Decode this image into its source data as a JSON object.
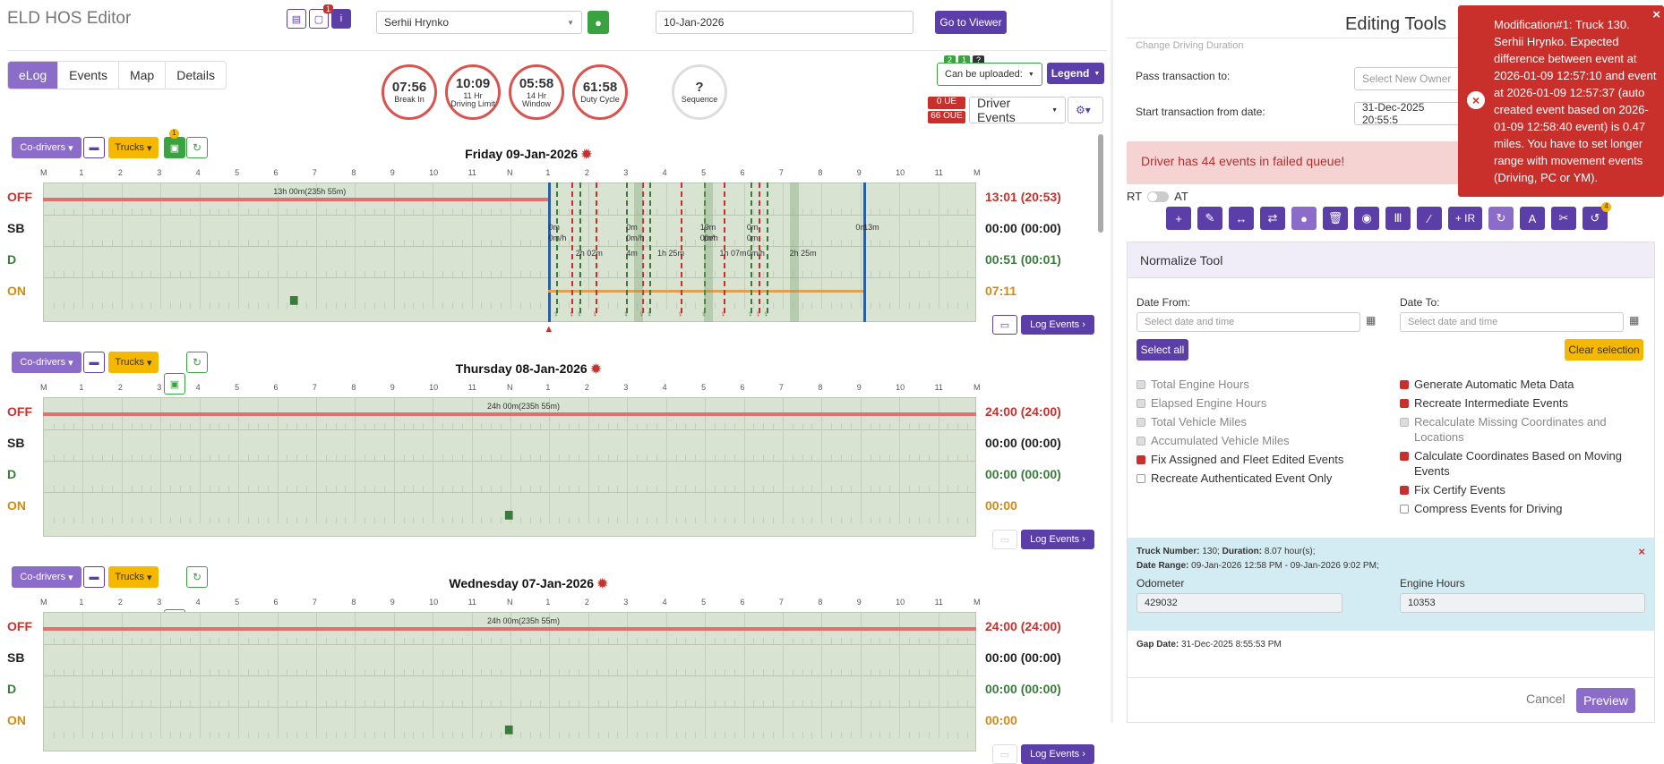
{
  "app": {
    "title": "ELD HOS Editor",
    "badge": "1",
    "driver": "Serhii Hrynko",
    "date": "10-Jan-2026",
    "go_viewer": "Go to Viewer"
  },
  "tabs": [
    "eLog",
    "Events",
    "Map",
    "Details"
  ],
  "counters": [
    {
      "value": "07:56",
      "label": "Break In"
    },
    {
      "value": "10:09",
      "label": "11 Hr Driving Limit"
    },
    {
      "value": "05:58",
      "label": "14 Hr Window"
    },
    {
      "value": "61:58",
      "label": "Duty Cycle"
    }
  ],
  "sequence": {
    "value": "?",
    "label": "Sequence"
  },
  "upload": {
    "label": "Can be uploaded:",
    "b1": "2",
    "b2": "1",
    "b3": "?",
    "legend": "Legend"
  },
  "ue": {
    "ue": "0 UE",
    "oue": "66 OUE"
  },
  "driver_events": "Driver Events",
  "day_controls": {
    "codrivers": "Co-drivers",
    "trucks": "Trucks",
    "log_events": "Log Events",
    "badge": "1"
  },
  "hour_labels": [
    "M",
    "1",
    "2",
    "3",
    "4",
    "5",
    "6",
    "7",
    "8",
    "9",
    "10",
    "11",
    "N",
    "1",
    "2",
    "3",
    "4",
    "5",
    "6",
    "7",
    "8",
    "9",
    "10",
    "11",
    "M"
  ],
  "row_labels": [
    "OFF",
    "SB",
    "D",
    "ON"
  ],
  "days": [
    {
      "title": "Friday 09-Jan-2026",
      "off_note": "13h 00m(235h 55m)",
      "totals": [
        "13:01 (20:53)",
        "00:00 (00:00)",
        "00:51 (00:01)",
        "07:11"
      ],
      "segments": [
        "0m",
        "0m/h",
        "2h 02m",
        "4m",
        "1h 25m",
        "19m",
        "0m/h",
        "1h 07m",
        "0m",
        "2h 25m",
        "0m",
        "0m",
        "0m/h",
        "0m",
        "0m",
        "0m/h",
        "13m"
      ]
    },
    {
      "title": "Thursday 08-Jan-2026",
      "off_note": "24h 00m(235h 55m)",
      "totals": [
        "24:00 (24:00)",
        "00:00 (00:00)",
        "00:00 (00:00)",
        "00:00"
      ]
    },
    {
      "title": "Wednesday 07-Jan-2026",
      "off_note": "24h 00m(235h 55m)",
      "totals": [
        "24:00 (24:00)",
        "00:00 (00:00)",
        "00:00 (00:00)",
        "00:00"
      ]
    }
  ],
  "editing": {
    "title": "Editing Tools",
    "change_driving": "Change Driving Duration",
    "pass_label": "Pass transaction to:",
    "pass_placeholder": "Select New Owner",
    "start_label": "Start transaction from date:",
    "start_value": "31-Dec-2025 20:55:5",
    "failed": "Driver has 44 events in failed queue!",
    "rt": "RT",
    "at": "AT",
    "tools_ir": "+ IR",
    "tools_badge": "4",
    "normalize": "Normalize Tool",
    "date_from": "Date From:",
    "date_to": "Date To:",
    "date_placeholder": "Select date and time",
    "select_all": "Select all",
    "clear": "Clear selection",
    "left_checks": [
      {
        "label": "Total Engine Hours",
        "state": "dis"
      },
      {
        "label": "Elapsed Engine Hours",
        "state": "dis"
      },
      {
        "label": "Total Vehicle Miles",
        "state": "dis"
      },
      {
        "label": "Accumulated Vehicle Miles",
        "state": "dis"
      },
      {
        "label": "Fix Assigned and Fleet Edited Events",
        "state": "on"
      },
      {
        "label": "Recreate Authenticated Event Only",
        "state": "off"
      }
    ],
    "right_checks": [
      {
        "label": "Generate Automatic Meta Data",
        "state": "on"
      },
      {
        "label": "Recreate Intermediate Events",
        "state": "on"
      },
      {
        "label": "Recalculate Missing Coordinates and Locations",
        "state": "dis"
      },
      {
        "label": "Calculate Coordinates Based on Moving Events",
        "state": "on"
      },
      {
        "label": "Fix Certify Events",
        "state": "on"
      },
      {
        "label": "Compress Events for Driving",
        "state": "off"
      }
    ],
    "truck": {
      "number_label": "Truck Number:",
      "number": "130;",
      "duration_label": "Duration:",
      "duration": "8.07 hour(s);",
      "range_label": "Date Range:",
      "range": "09-Jan-2026 12:58 PM - 09-Jan-2026 9:02 PM;",
      "odometer_label": "Odometer",
      "odometer": "429032",
      "engine_label": "Engine Hours",
      "engine": "10353",
      "gap_label": "Gap Date:",
      "gap": "31-Dec-2025 8:55:53 PM"
    },
    "cancel": "Cancel",
    "preview": "Preview"
  },
  "toast": {
    "text": "Modification#1: Truck 130. Serhii Hrynko. Expected difference between event at 2026-01-09 12:57:10 and event at 2026-01-09 12:57:37 (auto created event based on 2026-01-09 12:58:40 event) is 0.47 miles. You have to set longer range with movement events (Driving, PC or YM).",
    "close": "×"
  },
  "colors": {
    "purple": "#5b3ea8",
    "red": "#c9302c",
    "green": "#3aa341",
    "yellow": "#f5b700",
    "grid": "#d8e3d2",
    "off_line": "#e07070",
    "on_line": "#e0a050"
  }
}
